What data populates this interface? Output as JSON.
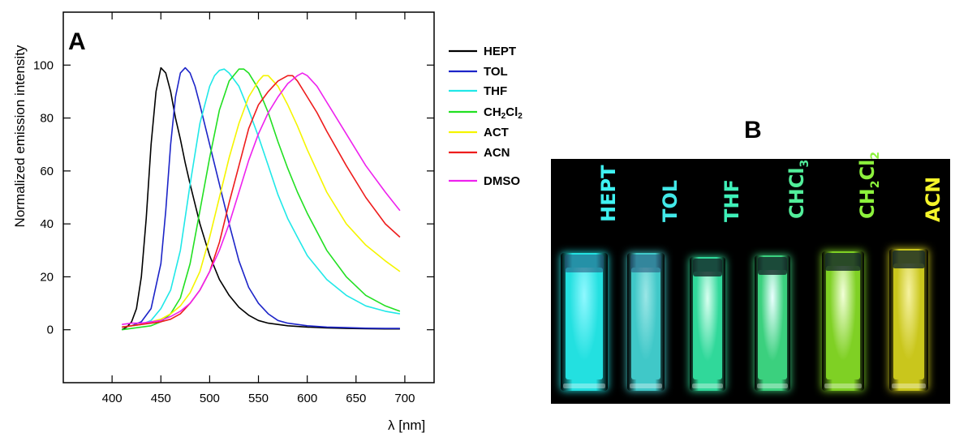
{
  "panel_a": {
    "letter": "A",
    "chart_data": {
      "type": "line",
      "xlabel": "λ [nm]",
      "ylabel": "Normalized emission intensity",
      "xlim": [
        350,
        730
      ],
      "ylim": [
        -20,
        120
      ],
      "xticks": [
        400,
        450,
        500,
        550,
        600,
        650,
        700
      ],
      "yticks": [
        0,
        20,
        40,
        60,
        80,
        100
      ],
      "grid": false,
      "legend_position": "right, outside plot",
      "series": [
        {
          "name": "HEPT",
          "sub": "",
          "color": "#000000",
          "x": [
            410,
            415,
            420,
            425,
            430,
            435,
            440,
            445,
            450,
            455,
            460,
            465,
            470,
            475,
            480,
            490,
            500,
            510,
            520,
            530,
            540,
            550,
            560,
            570,
            580,
            600,
            620,
            640,
            660,
            680,
            695
          ],
          "y": [
            0,
            1,
            3,
            8,
            20,
            42,
            70,
            90,
            99,
            97,
            90,
            80,
            72,
            63,
            55,
            40,
            28,
            19,
            13,
            8.5,
            5.5,
            3.5,
            2.5,
            2,
            1.5,
            1,
            0.7,
            0.5,
            0.4,
            0.3,
            0.3
          ]
        },
        {
          "name": "TOL",
          "sub": "",
          "color": "#1c24c8",
          "x": [
            410,
            420,
            430,
            440,
            450,
            455,
            460,
            465,
            470,
            475,
            480,
            485,
            490,
            500,
            510,
            520,
            530,
            540,
            550,
            560,
            570,
            580,
            600,
            620,
            640,
            660,
            680,
            695
          ],
          "y": [
            1,
            1.5,
            3,
            8,
            25,
            45,
            70,
            88,
            97,
            99,
            97,
            92,
            85,
            70,
            55,
            40,
            26,
            16,
            10,
            6,
            3.5,
            2.5,
            1.5,
            1,
            0.8,
            0.6,
            0.5,
            0.5
          ]
        },
        {
          "name": "THF",
          "sub": "",
          "color": "#20e8e8",
          "x": [
            410,
            420,
            430,
            440,
            450,
            460,
            470,
            480,
            490,
            500,
            505,
            510,
            515,
            520,
            530,
            540,
            550,
            560,
            570,
            580,
            590,
            600,
            620,
            640,
            660,
            680,
            695
          ],
          "y": [
            1,
            1.5,
            2,
            3.5,
            8,
            15,
            30,
            55,
            78,
            92,
            96,
            98,
            98.5,
            97,
            92,
            83,
            73,
            62,
            51,
            42,
            35,
            28,
            19,
            13,
            9,
            7,
            6
          ]
        },
        {
          "name": "CH",
          "sub": "2",
          "name2": "Cl",
          "sub2": "2",
          "color": "#22e022",
          "x": [
            410,
            420,
            430,
            440,
            450,
            460,
            470,
            480,
            490,
            500,
            510,
            520,
            530,
            535,
            540,
            550,
            560,
            570,
            580,
            590,
            600,
            620,
            640,
            660,
            680,
            695
          ],
          "y": [
            0,
            0.5,
            1,
            1.5,
            3,
            6,
            12,
            25,
            45,
            65,
            83,
            94,
            98.5,
            98.5,
            97,
            91,
            82,
            71,
            61,
            52,
            44,
            30,
            20,
            13,
            9,
            7
          ]
        },
        {
          "name": "ACT",
          "sub": "",
          "color": "#f5f500",
          "x": [
            410,
            420,
            430,
            440,
            450,
            460,
            470,
            480,
            490,
            500,
            510,
            520,
            530,
            540,
            550,
            555,
            560,
            570,
            580,
            590,
            600,
            620,
            640,
            660,
            680,
            695
          ],
          "y": [
            1,
            1.5,
            2,
            3,
            4,
            6,
            9,
            14,
            22,
            35,
            50,
            65,
            78,
            88,
            94,
            96,
            96,
            92,
            85,
            77,
            68,
            52,
            40,
            32,
            26,
            22
          ]
        },
        {
          "name": "ACN",
          "sub": "",
          "color": "#ee1c1c",
          "x": [
            410,
            420,
            430,
            440,
            450,
            460,
            470,
            480,
            490,
            500,
            510,
            520,
            530,
            540,
            550,
            560,
            570,
            580,
            585,
            590,
            600,
            610,
            620,
            640,
            660,
            680,
            695
          ],
          "y": [
            1,
            1.5,
            2,
            2.5,
            3,
            4,
            6,
            10,
            15,
            22,
            33,
            48,
            62,
            76,
            85,
            90,
            94,
            96,
            96,
            94,
            88,
            82,
            75,
            62,
            50,
            40,
            35
          ]
        },
        {
          "name": "DMSO",
          "sub": "",
          "color": "#ee22ee",
          "x": [
            410,
            420,
            430,
            440,
            450,
            460,
            470,
            480,
            490,
            500,
            510,
            520,
            530,
            540,
            550,
            560,
            570,
            580,
            590,
            595,
            600,
            610,
            620,
            640,
            660,
            680,
            695
          ],
          "y": [
            2,
            2.5,
            2.5,
            3,
            3.5,
            5,
            7,
            10,
            15,
            22,
            30,
            40,
            52,
            64,
            74,
            82,
            88,
            93,
            96,
            97,
            96,
            92,
            86,
            74,
            62,
            52,
            45
          ]
        }
      ]
    }
  },
  "panel_b": {
    "letter": "B",
    "vials": [
      {
        "label": "HEPT",
        "sub": "",
        "label2": "",
        "sub2": "",
        "label_color": "#3ff2f2",
        "glow": "#23e0e0",
        "glow_inner": "#8ff8ff",
        "has_qs": true
      },
      {
        "label": "TOL",
        "sub": "",
        "label2": "",
        "sub2": "",
        "label_color": "#42e8e8",
        "glow": "#40c8c8",
        "glow_inner": "#9ae6e6",
        "has_qs": true
      },
      {
        "label": "THF",
        "sub": "",
        "label2": "",
        "sub2": "",
        "label_color": "#3ff0b8",
        "glow": "#30d89a",
        "glow_inner": "#d8fff0",
        "has_qs": false
      },
      {
        "label": "CHCl",
        "sub": "3",
        "label2": "",
        "sub2": "",
        "label_color": "#52ee9a",
        "glow": "#3bd07e",
        "glow_inner": "#eaffff",
        "has_qs": false
      },
      {
        "label": "CH",
        "sub": "2",
        "label2": "Cl",
        "sub2": "2",
        "label_color": "#8cf23c",
        "glow": "#7fd024",
        "glow_inner": "#f2ffd8",
        "has_qs": false
      },
      {
        "label": "ACN",
        "sub": "",
        "label2": "",
        "sub2": "",
        "label_color": "#f5f52a",
        "glow": "#c9c61c",
        "glow_inner": "#f6f2a0",
        "has_qs": false
      }
    ]
  }
}
